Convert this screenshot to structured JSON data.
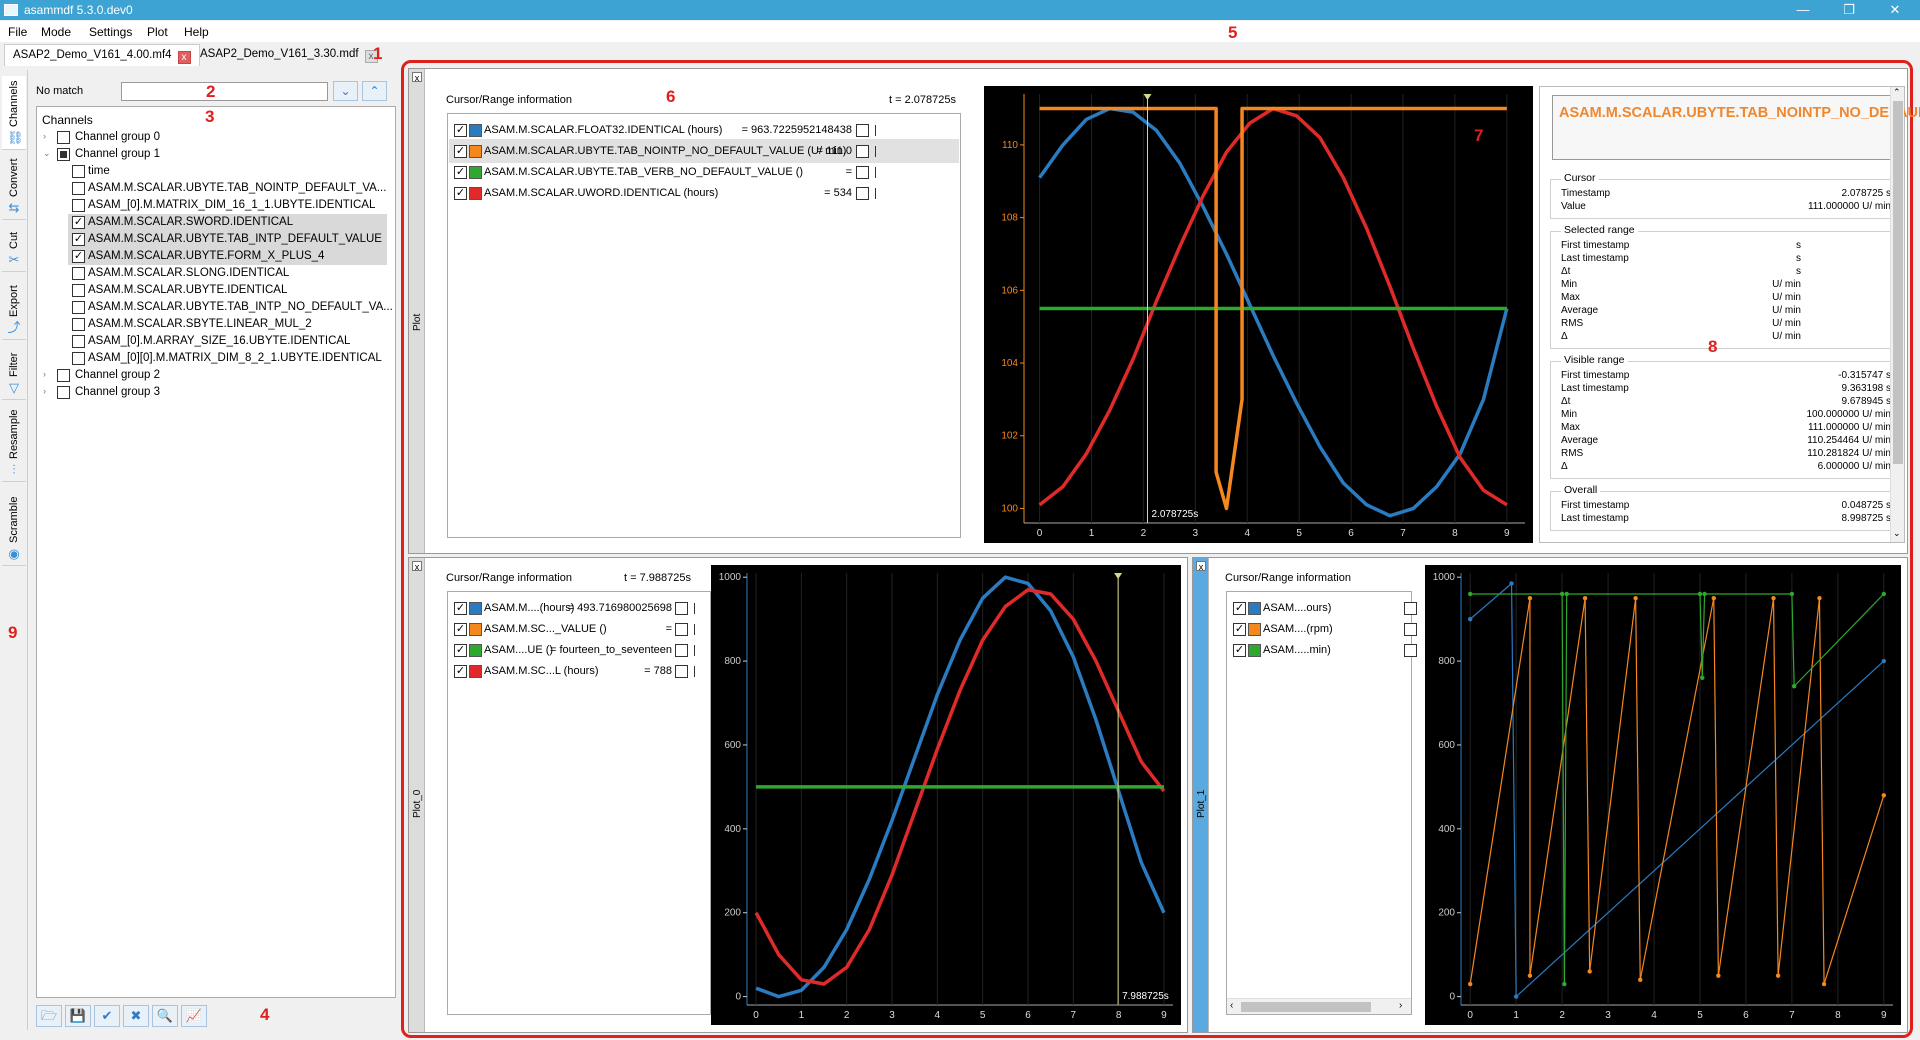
{
  "window": {
    "title": "asammdf 5.3.0.dev0",
    "minimize": "—",
    "maximize": "❐",
    "close": "✕"
  },
  "menu": [
    "File",
    "Mode",
    "Settings",
    "Plot",
    "Help"
  ],
  "tabs": [
    {
      "label": "ASAP2_Demo_V161_4.00.mf4",
      "close": "x"
    },
    {
      "label": "ASAP2_Demo_V161_3.30.mdf",
      "close": "x"
    }
  ],
  "side_tabs": [
    {
      "label": "Channels",
      "icon": "channels-icon",
      "glyph": "⛓"
    },
    {
      "label": "Convert",
      "icon": "convert-icon",
      "glyph": "⇆"
    },
    {
      "label": "Cut",
      "icon": "scissors-icon",
      "glyph": "✂"
    },
    {
      "label": "Export",
      "icon": "export-icon",
      "glyph": "⤴"
    },
    {
      "label": "Filter",
      "icon": "filter-icon",
      "glyph": "▽"
    },
    {
      "label": "Resample",
      "icon": "resample-icon",
      "glyph": "⫶"
    },
    {
      "label": "Scramble",
      "icon": "scramble-icon",
      "glyph": "◉"
    }
  ],
  "search": {
    "label": "No match",
    "value": "",
    "down": "⌄",
    "up": "⌃"
  },
  "tree": {
    "header": "Channels",
    "rows": [
      {
        "indent": 0,
        "arrow": "›",
        "check": "",
        "text": "Channel group 0",
        "sel": false
      },
      {
        "indent": 0,
        "arrow": "⌄",
        "check": "partial",
        "text": "Channel group 1",
        "sel": false
      },
      {
        "indent": 1,
        "arrow": "",
        "check": "",
        "text": "time",
        "sel": false
      },
      {
        "indent": 1,
        "arrow": "",
        "check": "",
        "text": "ASAM.M.SCALAR.UBYTE.TAB_NOINTP_DEFAULT_VA...",
        "sel": false
      },
      {
        "indent": 1,
        "arrow": "",
        "check": "",
        "text": "ASAM_[0].M.MATRIX_DIM_16_1_1.UBYTE.IDENTICAL",
        "sel": false
      },
      {
        "indent": 1,
        "arrow": "",
        "check": "✓",
        "text": "ASAM.M.SCALAR.SWORD.IDENTICAL",
        "sel": true
      },
      {
        "indent": 1,
        "arrow": "",
        "check": "✓",
        "text": "ASAM.M.SCALAR.UBYTE.TAB_INTP_DEFAULT_VALUE",
        "sel": true
      },
      {
        "indent": 1,
        "arrow": "",
        "check": "✓",
        "text": "ASAM.M.SCALAR.UBYTE.FORM_X_PLUS_4",
        "sel": true
      },
      {
        "indent": 1,
        "arrow": "",
        "check": "",
        "text": "ASAM.M.SCALAR.SLONG.IDENTICAL",
        "sel": false
      },
      {
        "indent": 1,
        "arrow": "",
        "check": "",
        "text": "ASAM.M.SCALAR.UBYTE.IDENTICAL",
        "sel": false
      },
      {
        "indent": 1,
        "arrow": "",
        "check": "",
        "text": "ASAM.M.SCALAR.UBYTE.TAB_INTP_NO_DEFAULT_VA...",
        "sel": false
      },
      {
        "indent": 1,
        "arrow": "",
        "check": "",
        "text": "ASAM.M.SCALAR.SBYTE.LINEAR_MUL_2",
        "sel": false
      },
      {
        "indent": 1,
        "arrow": "",
        "check": "",
        "text": "ASAM_[0].M.ARRAY_SIZE_16.UBYTE.IDENTICAL",
        "sel": false
      },
      {
        "indent": 1,
        "arrow": "",
        "check": "",
        "text": "ASAM_[0][0].M.MATRIX_DIM_8_2_1.UBYTE.IDENTICAL",
        "sel": false
      },
      {
        "indent": 0,
        "arrow": "›",
        "check": "",
        "text": "Channel group 2",
        "sel": false
      },
      {
        "indent": 0,
        "arrow": "›",
        "check": "",
        "text": "Channel group 3",
        "sel": false
      }
    ]
  },
  "bottom_buttons": [
    {
      "name": "load-config-button",
      "glyph": "🗁"
    },
    {
      "name": "save-config-button",
      "glyph": "💾"
    },
    {
      "name": "select-all-button",
      "glyph": "✔"
    },
    {
      "name": "clear-selection-button",
      "glyph": "✖"
    },
    {
      "name": "advanced-search-button",
      "glyph": "🔍"
    },
    {
      "name": "create-plot-button",
      "glyph": "📈"
    }
  ],
  "annotations": [
    "1",
    "2",
    "3",
    "4",
    "5",
    "6",
    "7",
    "8",
    "9"
  ],
  "colors": {
    "blue": "#2b7bc1",
    "orange": "#f5871f",
    "green": "#2ea82e",
    "red": "#e02a2a",
    "annotation": "#e0201c"
  },
  "plot_top": {
    "side_label": "Plot",
    "close": "x",
    "cursor_title": "Cursor/Range information",
    "t": "t = 2.078725s",
    "signals": [
      {
        "name": "ASAM.M.SCALAR.FLOAT32.IDENTICAL (hours)",
        "value": "= 963.7225952148438",
        "color": "#2b7bc1",
        "sel": false
      },
      {
        "name": "ASAM.M.SCALAR.UBYTE.TAB_NOINTP_NO_DEFAULT_VALUE (U/ min)",
        "value": "= 111.0",
        "color": "#f5871f",
        "sel": true
      },
      {
        "name": "ASAM.M.SCALAR.UBYTE.TAB_VERB_NO_DEFAULT_VALUE ()",
        "value": "=",
        "color": "#2ea82e",
        "sel": false
      },
      {
        "name": "ASAM.M.SCALAR.UWORD.IDENTICAL (hours)",
        "value": "= 534",
        "color": "#e02a2a",
        "sel": false
      }
    ],
    "cursor_label": "2.078725s"
  },
  "stats": {
    "title": "ASAM.M.SCALAR.UBYTE.TAB_NOINTP_NO_DEFAULT_VALUE",
    "groups": [
      {
        "title": "Cursor",
        "rows": [
          [
            "Timestamp",
            "2.078725 s"
          ],
          [
            "Value",
            "111.000000 U/ min"
          ]
        ]
      },
      {
        "title": "Selected range",
        "rows": [
          [
            "First timestamp",
            "s"
          ],
          [
            "Last timestamp",
            "s"
          ],
          [
            "Δt",
            "s"
          ],
          [
            "Min",
            "U/ min"
          ],
          [
            "Max",
            "U/ min"
          ],
          [
            "Average",
            "U/ min"
          ],
          [
            "RMS",
            "U/ min"
          ],
          [
            "Δ",
            "U/ min"
          ]
        ]
      },
      {
        "title": "Visible range",
        "rows": [
          [
            "First timestamp",
            "-0.315747 s"
          ],
          [
            "Last timestamp",
            "9.363198 s"
          ],
          [
            "Δt",
            "9.678945 s"
          ],
          [
            "Min",
            "100.000000 U/ min"
          ],
          [
            "Max",
            "111.000000 U/ min"
          ],
          [
            "Average",
            "110.254464 U/ min"
          ],
          [
            "RMS",
            "110.281824 U/ min"
          ],
          [
            "Δ",
            "6.000000 U/ min"
          ]
        ]
      },
      {
        "title": "Overall",
        "rows": [
          [
            "First timestamp",
            "0.048725 s"
          ],
          [
            "Last timestamp",
            "8.998725 s"
          ]
        ]
      }
    ]
  },
  "plot_0": {
    "side_label": "Plot_0",
    "close": "x",
    "cursor_title": "Cursor/Range information",
    "t": "t = 7.988725s",
    "signals": [
      {
        "name": "ASAM.M....(hours)",
        "value": "= 493.716980025698",
        "color": "#2b7bc1"
      },
      {
        "name": "ASAM.M.SC..._VALUE ()",
        "value": "=",
        "color": "#f5871f"
      },
      {
        "name": "ASAM....UE ()",
        "value": "= fourteen_to_seventeen",
        "color": "#2ea82e"
      },
      {
        "name": "ASAM.M.SC...L (hours)",
        "value": "= 788",
        "color": "#e02a2a"
      }
    ],
    "cursor_label": "7.988725s"
  },
  "plot_1": {
    "side_label": "Plot_1",
    "close": "x",
    "cursor_title": "Cursor/Range information",
    "signals": [
      {
        "name": "ASAM....ours)",
        "color": "#2b7bc1"
      },
      {
        "name": "ASAM....(rpm)",
        "color": "#f5871f"
      },
      {
        "name": "ASAM.....min)",
        "color": "#2ea82e"
      }
    ]
  },
  "chart_data": [
    {
      "type": "line",
      "x_ticks": [
        0,
        1,
        2,
        3,
        4,
        5,
        6,
        7,
        8,
        9
      ],
      "y_ticks": [
        100,
        102,
        104,
        106,
        108,
        110
      ],
      "xlim": [
        -0.3,
        9.35
      ],
      "ylim": [
        99.6,
        111.4
      ],
      "axis_color": "#f5871f",
      "cursor_x": 2.078725,
      "series": [
        {
          "color": "#2b7bc1",
          "x": [
            0.0,
            0.45,
            0.9,
            1.35,
            1.8,
            2.25,
            2.7,
            3.15,
            3.6,
            4.05,
            4.5,
            4.95,
            5.4,
            5.85,
            6.3,
            6.75,
            7.2,
            7.65,
            8.1,
            8.55,
            9.0
          ],
          "y": [
            109.1,
            110.0,
            110.7,
            111.0,
            110.9,
            110.4,
            109.5,
            108.3,
            107.0,
            105.6,
            104.2,
            102.9,
            101.7,
            100.7,
            100.1,
            99.8,
            100.0,
            100.6,
            101.5,
            103.0,
            105.5
          ]
        },
        {
          "color": "#e02a2a",
          "x": [
            0.0,
            0.45,
            0.9,
            1.35,
            1.8,
            2.25,
            2.7,
            3.15,
            3.6,
            4.05,
            4.5,
            4.95,
            5.4,
            5.85,
            6.3,
            6.75,
            7.2,
            7.65,
            8.1,
            8.55,
            9.0
          ],
          "y": [
            100.1,
            100.6,
            101.5,
            102.7,
            104.1,
            105.7,
            107.2,
            108.6,
            109.8,
            110.6,
            111.0,
            110.8,
            110.2,
            109.1,
            107.7,
            106.1,
            104.4,
            102.8,
            101.4,
            100.5,
            100.1
          ]
        },
        {
          "color": "#2ea82e",
          "x": [
            0.0,
            9.0
          ],
          "y": [
            105.5,
            105.5
          ]
        },
        {
          "color": "#f5871f",
          "x": [
            0.0,
            2.1,
            2.1,
            3.4,
            3.4,
            3.6,
            3.6,
            3.9,
            3.9,
            9.0
          ],
          "y": [
            111.0,
            111.0,
            111.0,
            111.0,
            101.0,
            100.0,
            100.0,
            103.0,
            111.0,
            111.0
          ]
        }
      ]
    },
    {
      "type": "line",
      "x_ticks": [
        0,
        1,
        2,
        3,
        4,
        5,
        6,
        7,
        8,
        9
      ],
      "y_ticks": [
        0,
        200,
        400,
        600,
        800,
        1000
      ],
      "xlim": [
        -0.2,
        9.2
      ],
      "ylim": [
        -20,
        1010
      ],
      "cursor_x": 7.988725,
      "series": [
        {
          "color": "#2b7bc1",
          "x": [
            0.0,
            0.5,
            1.0,
            1.5,
            2.0,
            2.5,
            3.0,
            3.5,
            4.0,
            4.5,
            5.0,
            5.5,
            6.0,
            6.5,
            7.0,
            7.5,
            8.0,
            8.5,
            9.0
          ],
          "y": [
            20,
            0,
            15,
            70,
            160,
            280,
            420,
            570,
            720,
            850,
            950,
            1000,
            985,
            920,
            810,
            660,
            490,
            320,
            200
          ]
        },
        {
          "color": "#e02a2a",
          "x": [
            0.0,
            0.5,
            1.0,
            1.5,
            2.0,
            2.5,
            3.0,
            3.5,
            4.0,
            4.5,
            5.0,
            5.5,
            6.0,
            6.5,
            7.0,
            7.5,
            8.0,
            8.5,
            9.0
          ],
          "y": [
            200,
            100,
            40,
            30,
            70,
            160,
            290,
            440,
            590,
            730,
            850,
            930,
            970,
            960,
            900,
            800,
            680,
            560,
            490
          ]
        },
        {
          "color": "#2ea82e",
          "x": [
            0.0,
            9.0
          ],
          "y": [
            500,
            500
          ]
        }
      ]
    },
    {
      "type": "scatter",
      "x_ticks": [
        0,
        1,
        2,
        3,
        4,
        5,
        6,
        7,
        8,
        9
      ],
      "y_ticks": [
        0,
        200,
        400,
        600,
        800,
        1000
      ],
      "xlim": [
        -0.2,
        9.2
      ],
      "ylim": [
        -20,
        1010
      ],
      "series": [
        {
          "color": "#2b7bc1",
          "x": [
            0.0,
            0.9,
            1.0,
            9.0
          ],
          "y": [
            900,
            985,
            0,
            800
          ]
        },
        {
          "color": "#f5871f",
          "x": [
            0.0,
            1.3,
            1.3,
            2.5,
            2.6,
            3.6,
            3.7,
            5.3,
            5.4,
            6.6,
            6.7,
            7.6,
            7.7,
            9.0
          ],
          "y": [
            30,
            950,
            50,
            950,
            60,
            950,
            40,
            950,
            50,
            950,
            50,
            950,
            30,
            480
          ]
        },
        {
          "color": "#2ea82e",
          "x": [
            0.0,
            2.0,
            2.05,
            2.1,
            5.0,
            5.05,
            5.1,
            7.0,
            7.05,
            9.0
          ],
          "y": [
            960,
            960,
            30,
            960,
            960,
            760,
            960,
            960,
            740,
            960
          ]
        }
      ]
    }
  ]
}
